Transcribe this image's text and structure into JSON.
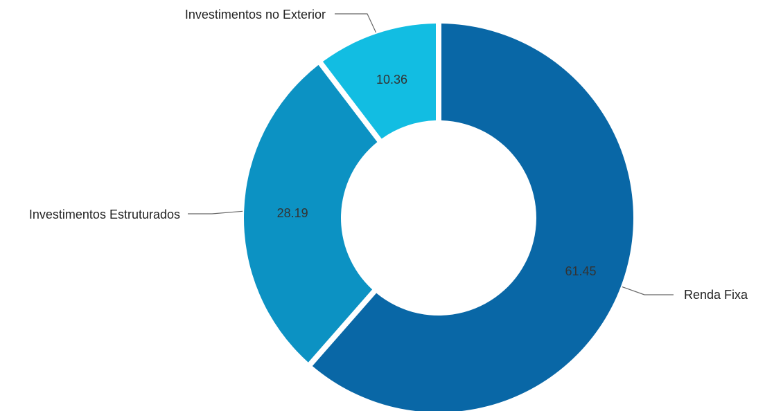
{
  "chart_data": {
    "type": "pie",
    "categories": [
      "Renda Fixa",
      "Investimentos Estruturados",
      "Investimentos no Exterior"
    ],
    "values": [
      61.45,
      28.19,
      10.36
    ],
    "value_labels": [
      "61.45",
      "28.19",
      "10.36"
    ],
    "colors": [
      "#0967a6",
      "#0c92c3",
      "#12bde2"
    ],
    "title": "",
    "legend": "none",
    "donut": true,
    "start_angle": "top",
    "direction": "clockwise"
  }
}
